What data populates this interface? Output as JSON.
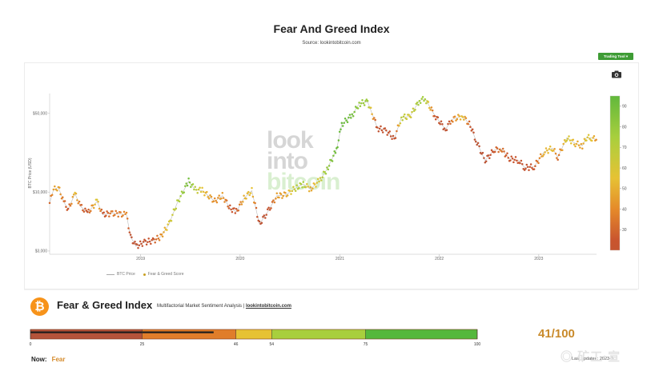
{
  "header": {
    "title": "Fear And Greed Index",
    "subtitle": "Source: lookintobitcoin.com",
    "trading_button": "Trading Tool ▾"
  },
  "watermark": {
    "line1": "look",
    "line2": "into",
    "line3": "bitcoin"
  },
  "corner_watermark": "◎ 矿工·宣",
  "legend": {
    "price": "BTC Price",
    "score": "Fear & Greed Score"
  },
  "panel": {
    "logo": "₿",
    "title": "Fear & Greed Index",
    "subtitle_text": "Multifactorial Market Sentiment Analysis | ",
    "subtitle_link": "lookintobitcoin.com",
    "score": "41/100",
    "now_label": "Now:",
    "now_value": "Fear",
    "last_updated": "Last updated: 2023-0..."
  },
  "gauge": {
    "value": 41,
    "min": 0,
    "max": 100,
    "segments": [
      {
        "from": 0,
        "to": 25,
        "color": "#b4533a"
      },
      {
        "from": 25,
        "to": 46,
        "color": "#e07d2a"
      },
      {
        "from": 46,
        "to": 54,
        "color": "#e6c234"
      },
      {
        "from": 54,
        "to": 75,
        "color": "#a8cf3d"
      },
      {
        "from": 75,
        "to": 100,
        "color": "#55b83c"
      }
    ],
    "ticks": [
      "0",
      "25",
      "46",
      "54",
      "75",
      "100"
    ],
    "tick_values": [
      0,
      25,
      46,
      54,
      75,
      100
    ]
  },
  "colors": {
    "extreme_fear": "#b4533a",
    "fear": "#e07d2a",
    "neutral": "#e6c234",
    "greed": "#a8cf3d",
    "extreme_greed": "#55b83c",
    "price_line": "#bbbbbb",
    "button": "#3e9c35"
  },
  "chart_data": {
    "type": "scatter",
    "title": "Fear And Greed Index",
    "ylabel": "BTC Price (USD)",
    "y_scale": "log",
    "ylim": [
      2900,
      75000
    ],
    "yticks": [
      3000,
      10000,
      50000
    ],
    "ytick_labels": [
      "$3,000",
      "$10,000",
      "$50,000"
    ],
    "xlim": [
      "2018-02-01",
      "2023-08-01"
    ],
    "xticks": [
      "2019-01-01",
      "2020-01-01",
      "2021-01-01",
      "2022-01-01",
      "2023-01-01"
    ],
    "xtick_labels": [
      "2019",
      "2020",
      "2021",
      "2022",
      "2023"
    ],
    "colorbar": {
      "range": [
        20,
        95
      ],
      "ticks": [
        30,
        40,
        50,
        60,
        70,
        80,
        90
      ],
      "tick_labels": [
        "30",
        "40",
        "50",
        "60",
        "70",
        "80",
        "90"
      ]
    },
    "series": [
      {
        "name": "BTC Price",
        "points": [
          [
            "2018-02-01",
            8000,
            30
          ],
          [
            "2018-02-15",
            10500,
            45
          ],
          [
            "2018-03-05",
            11000,
            48
          ],
          [
            "2018-03-25",
            8200,
            32
          ],
          [
            "2018-04-10",
            7000,
            25
          ],
          [
            "2018-05-05",
            9700,
            55
          ],
          [
            "2018-05-25",
            7500,
            30
          ],
          [
            "2018-06-20",
            6500,
            25
          ],
          [
            "2018-07-25",
            8300,
            60
          ],
          [
            "2018-08-15",
            6300,
            22
          ],
          [
            "2018-09-15",
            6500,
            35
          ],
          [
            "2018-10-15",
            6400,
            35
          ],
          [
            "2018-11-10",
            6300,
            40
          ],
          [
            "2018-11-25",
            4000,
            15
          ],
          [
            "2018-12-15",
            3300,
            12
          ],
          [
            "2019-01-15",
            3600,
            20
          ],
          [
            "2019-02-15",
            3700,
            25
          ],
          [
            "2019-03-15",
            4000,
            40
          ],
          [
            "2019-04-15",
            5200,
            60
          ],
          [
            "2019-05-15",
            8000,
            70
          ],
          [
            "2019-06-26",
            12500,
            90
          ],
          [
            "2019-07-20",
            10500,
            70
          ],
          [
            "2019-08-15",
            10300,
            55
          ],
          [
            "2019-09-30",
            8300,
            40
          ],
          [
            "2019-10-28",
            9300,
            45
          ],
          [
            "2019-11-25",
            7200,
            25
          ],
          [
            "2019-12-18",
            6700,
            25
          ],
          [
            "2020-01-15",
            8800,
            50
          ],
          [
            "2020-02-13",
            10300,
            55
          ],
          [
            "2020-03-12",
            5200,
            10
          ],
          [
            "2020-04-15",
            6900,
            20
          ],
          [
            "2020-05-15",
            9300,
            45
          ],
          [
            "2020-06-15",
            9400,
            45
          ],
          [
            "2020-07-27",
            11000,
            70
          ],
          [
            "2020-08-20",
            11800,
            75
          ],
          [
            "2020-09-15",
            10600,
            45
          ],
          [
            "2020-10-21",
            12900,
            65
          ],
          [
            "2020-11-15",
            16000,
            80
          ],
          [
            "2020-12-20",
            23800,
            92
          ],
          [
            "2021-01-08",
            40000,
            93
          ],
          [
            "2021-02-15",
            48000,
            90
          ],
          [
            "2021-03-13",
            61000,
            80
          ],
          [
            "2021-04-13",
            63500,
            78
          ],
          [
            "2021-05-19",
            37000,
            15
          ],
          [
            "2021-06-20",
            35000,
            20
          ],
          [
            "2021-07-20",
            29800,
            15
          ],
          [
            "2021-08-15",
            46000,
            70
          ],
          [
            "2021-09-15",
            47000,
            60
          ],
          [
            "2021-10-20",
            65000,
            78
          ],
          [
            "2021-11-10",
            67500,
            75
          ],
          [
            "2021-12-15",
            48000,
            25
          ],
          [
            "2022-01-24",
            36000,
            10
          ],
          [
            "2022-02-15",
            44000,
            35
          ],
          [
            "2022-03-28",
            47500,
            55
          ],
          [
            "2022-04-25",
            39000,
            25
          ],
          [
            "2022-05-15",
            29000,
            10
          ],
          [
            "2022-06-18",
            19000,
            8
          ],
          [
            "2022-07-20",
            23500,
            25
          ],
          [
            "2022-08-15",
            24300,
            35
          ],
          [
            "2022-09-15",
            19800,
            22
          ],
          [
            "2022-10-20",
            19100,
            25
          ],
          [
            "2022-11-10",
            16500,
            15
          ],
          [
            "2022-12-15",
            16800,
            25
          ],
          [
            "2023-01-20",
            22700,
            50
          ],
          [
            "2023-02-20",
            24500,
            55
          ],
          [
            "2023-03-12",
            20500,
            30
          ],
          [
            "2023-04-14",
            30400,
            62
          ],
          [
            "2023-05-15",
            27000,
            50
          ],
          [
            "2023-06-10",
            25800,
            45
          ],
          [
            "2023-06-25",
            30500,
            60
          ],
          [
            "2023-07-15",
            30300,
            55
          ],
          [
            "2023-07-31",
            29200,
            41
          ]
        ]
      }
    ]
  }
}
